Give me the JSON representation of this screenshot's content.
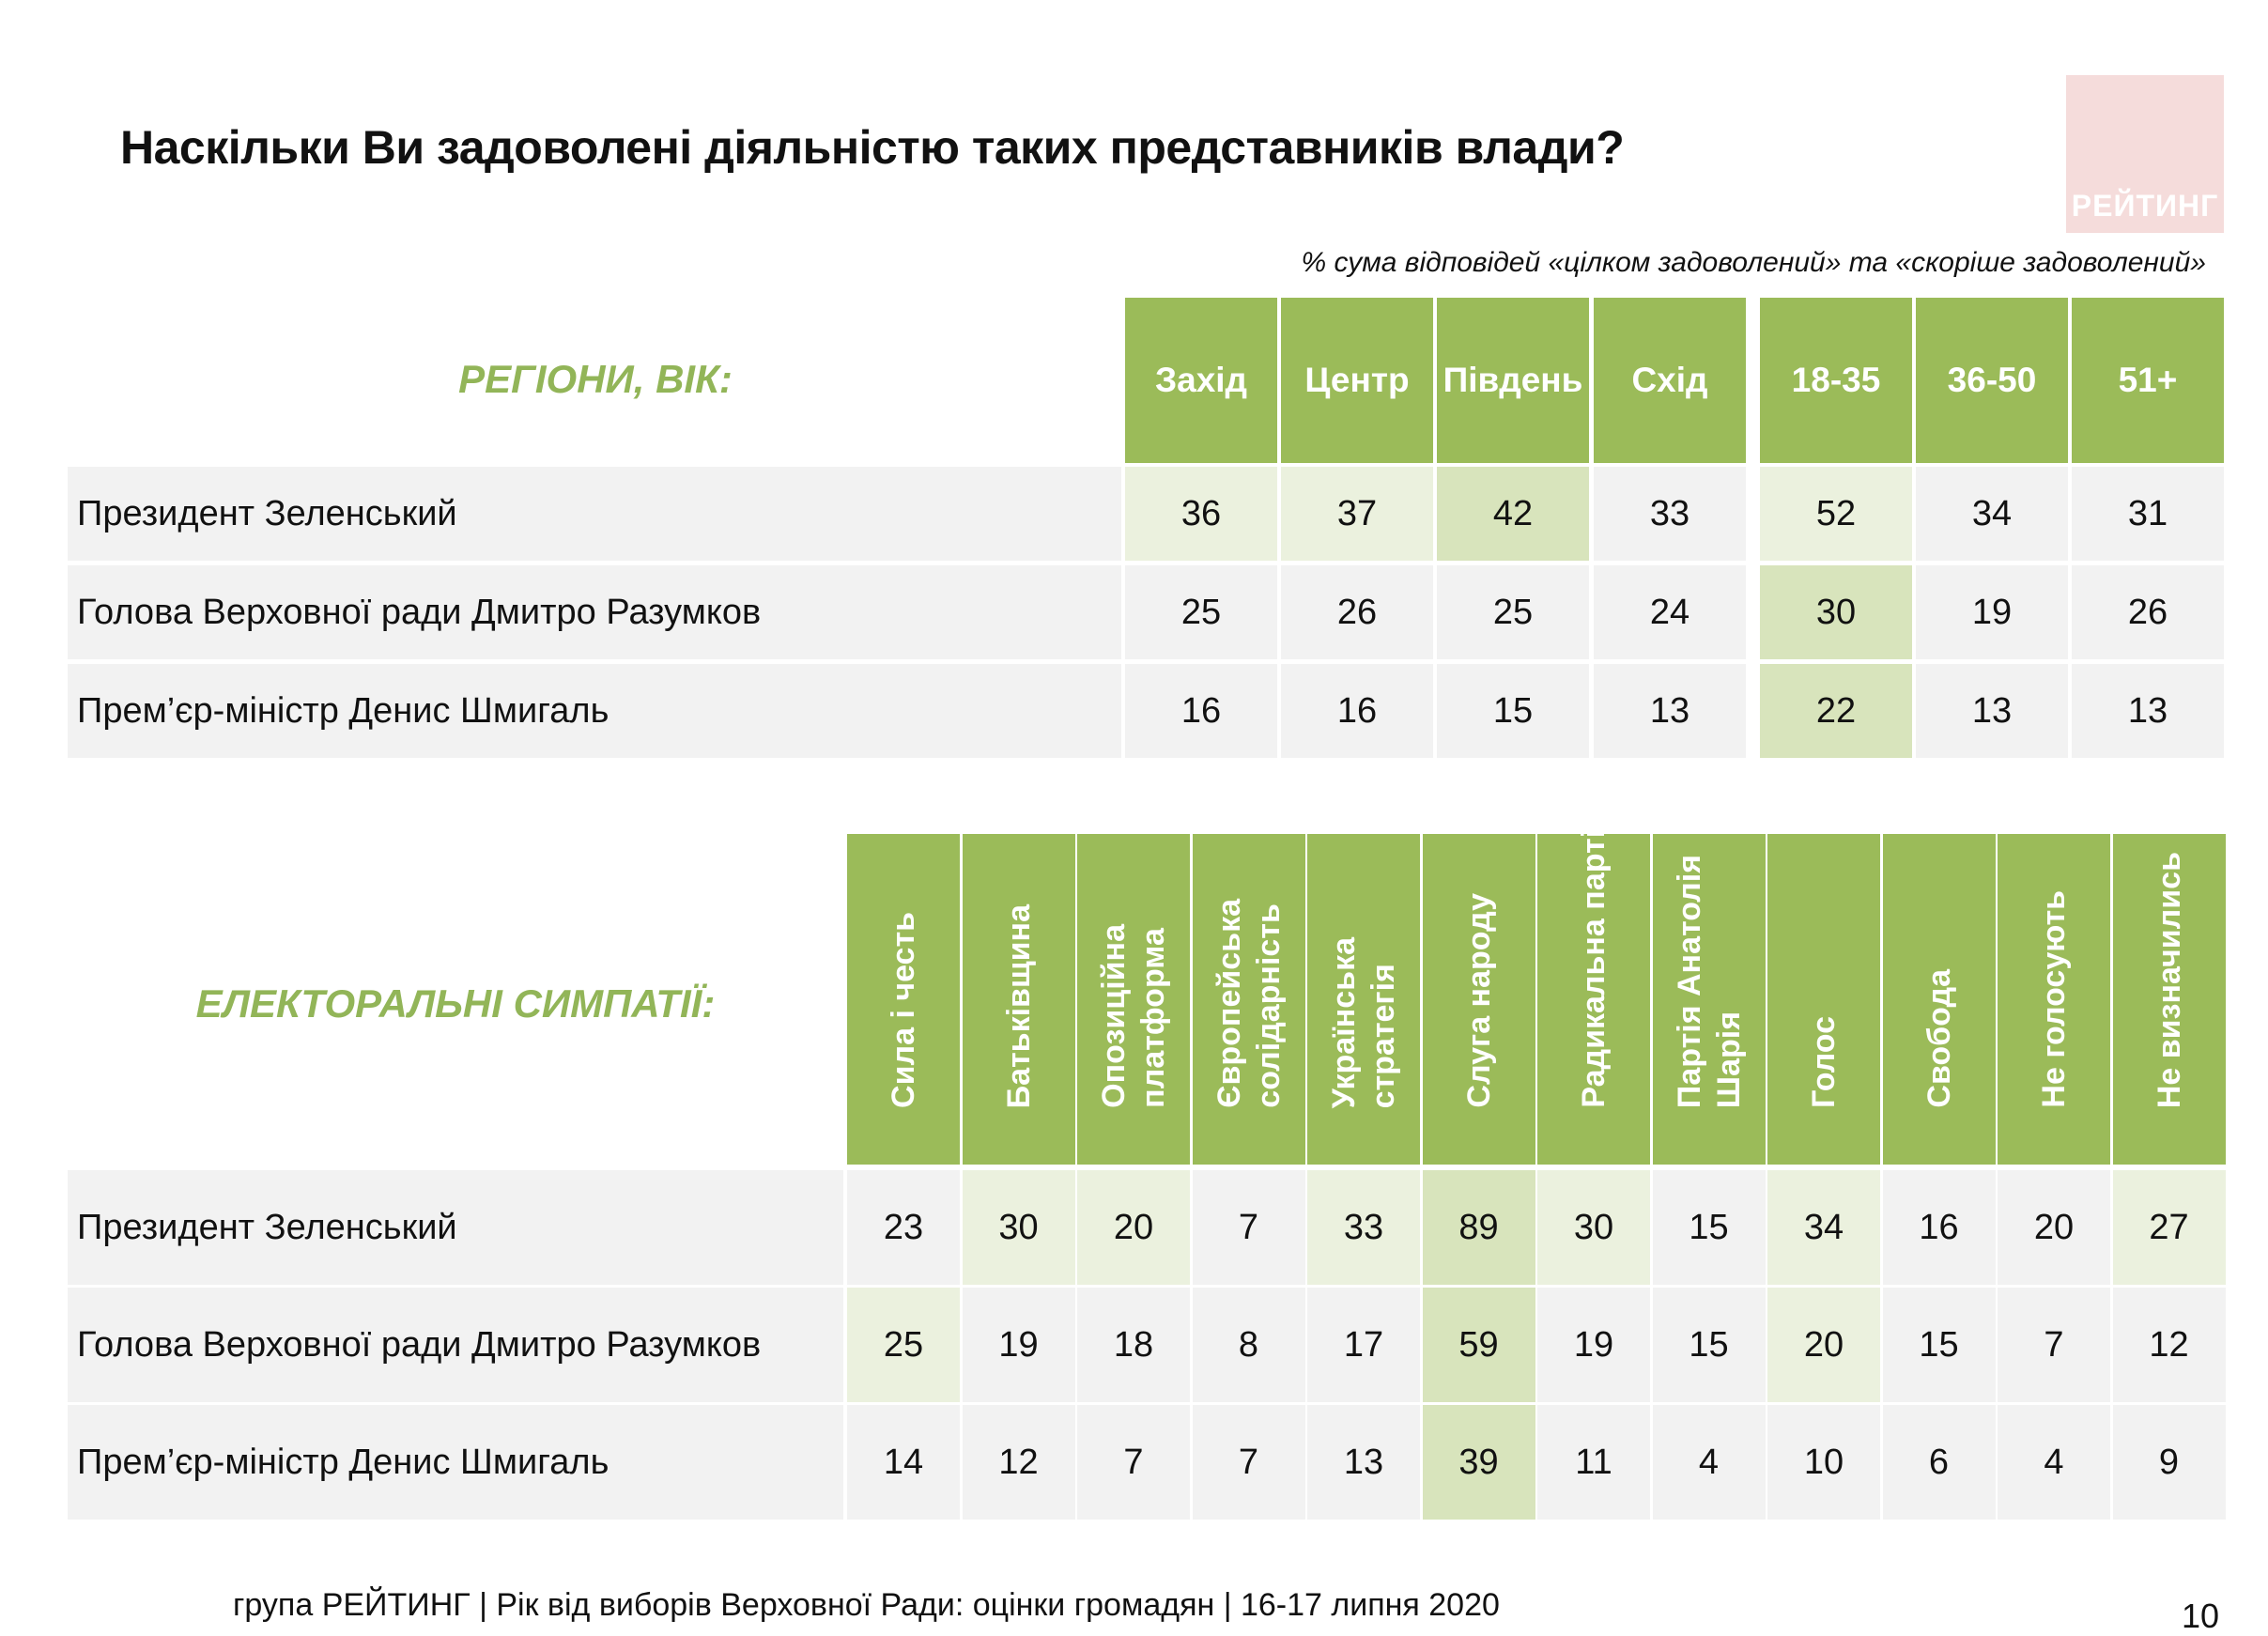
{
  "title": "Наскільки Ви задоволені діяльністю таких представників влади?",
  "logo_text": "РЕЙТИНГ",
  "note": "% сума відповідей «цілком задоволений» та «скоріше задоволений»",
  "colors": {
    "header_green": "#9bbb59",
    "label_green": "#92b558",
    "row_gray": "#f2f2f2",
    "highlight_light": "#ebf1de",
    "highlight_dark": "#d8e4bc"
  },
  "table1": {
    "label": "РЕГІОНИ, ВІК:",
    "columns": [
      "Захід",
      "Центр",
      "Південь",
      "Схід",
      "18-35",
      "36-50",
      "51+"
    ],
    "rows": [
      {
        "name": "Президент Зеленський",
        "values": [
          "36",
          "37",
          "42",
          "33",
          "52",
          "34",
          "31"
        ],
        "highlight": [
          1,
          1,
          2,
          0,
          1,
          0,
          0
        ]
      },
      {
        "name": "Голова Верховної ради Дмитро Разумков",
        "values": [
          "25",
          "26",
          "25",
          "24",
          "30",
          "19",
          "26"
        ],
        "highlight": [
          0,
          0,
          0,
          0,
          2,
          0,
          0
        ]
      },
      {
        "name": "Прем’єр-міністр Денис Шмигаль",
        "values": [
          "16",
          "16",
          "15",
          "13",
          "22",
          "13",
          "13"
        ],
        "highlight": [
          0,
          0,
          0,
          0,
          2,
          0,
          0
        ]
      }
    ]
  },
  "table2": {
    "label": "ЕЛЕКТОРАЛЬНІ СИМПАТІЇ:",
    "columns": [
      "Сила і честь",
      "Батьківщина",
      "Опозиційна\nплатформа",
      "Європейська\nсолідарність",
      "Українська\nстратегія",
      "Слуга народу",
      "Радикальна партія",
      "Партія Анатолія\nШарія",
      "Голос",
      "Свобода",
      "Не голосують",
      "Не визначились"
    ],
    "rows": [
      {
        "name": "Президент Зеленський",
        "values": [
          "23",
          "30",
          "20",
          "7",
          "33",
          "89",
          "30",
          "15",
          "34",
          "16",
          "20",
          "27"
        ],
        "highlight": [
          0,
          1,
          1,
          0,
          1,
          2,
          1,
          0,
          1,
          0,
          0,
          1
        ]
      },
      {
        "name": "Голова Верховної ради Дмитро Разумков",
        "values": [
          "25",
          "19",
          "18",
          "8",
          "17",
          "59",
          "19",
          "15",
          "20",
          "15",
          "7",
          "12"
        ],
        "highlight": [
          1,
          0,
          0,
          0,
          0,
          2,
          0,
          0,
          1,
          0,
          0,
          0
        ]
      },
      {
        "name": "Прем’єр-міністр Денис Шмигаль",
        "values": [
          "14",
          "12",
          "7",
          "7",
          "13",
          "39",
          "11",
          "4",
          "10",
          "6",
          "4",
          "9"
        ],
        "highlight": [
          0,
          0,
          0,
          0,
          0,
          2,
          0,
          0,
          0,
          0,
          0,
          0
        ]
      }
    ]
  },
  "footer": "група РЕЙТИНГ | Рік від виборів Верховної Ради: оцінки громадян | 16-17 липня 2020",
  "page_number": "10"
}
